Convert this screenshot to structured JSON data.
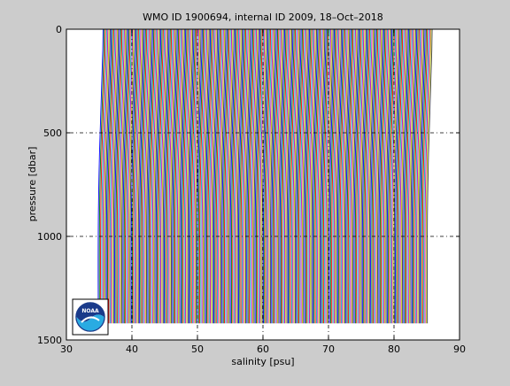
{
  "chart_data": {
    "type": "line",
    "title": "WMO ID 1900694, internal ID 2009, 18–Oct–2018",
    "xlabel": "salinity [psu]",
    "ylabel": "pressure [dbar]",
    "xlim": [
      30,
      90
    ],
    "ylim": [
      0,
      1500
    ],
    "y_reversed": true,
    "x_ticks": [
      30,
      40,
      50,
      60,
      70,
      80,
      90
    ],
    "y_ticks": [
      0,
      500,
      1000,
      1500
    ],
    "x_tick_labels": [
      "30",
      "40",
      "50",
      "60",
      "70",
      "80",
      "90"
    ],
    "y_tick_labels": [
      "0",
      "500",
      "1000",
      "1500"
    ],
    "grid": true,
    "grid_style": "dash-dot",
    "legend": "none",
    "profile_offset_psu": 0.18,
    "profile_count": 280,
    "first_profile": {
      "pressure": [
        0,
        100,
        200,
        300,
        400,
        500,
        600,
        700,
        800,
        900,
        1000,
        1100,
        1200,
        1300,
        1400,
        1420
      ],
      "salinity": [
        35.6,
        35.55,
        35.45,
        35.35,
        35.25,
        35.15,
        35.05,
        34.98,
        34.92,
        34.88,
        34.86,
        34.85,
        34.85,
        34.86,
        34.87,
        34.87
      ]
    },
    "series_colors": [
      "#0000ff",
      "#008000",
      "#ff0000",
      "#00bfbf",
      "#bf00bf",
      "#bfbf00",
      "#404040"
    ]
  },
  "logo": {
    "name": "NOAA",
    "text": "NOAA"
  }
}
